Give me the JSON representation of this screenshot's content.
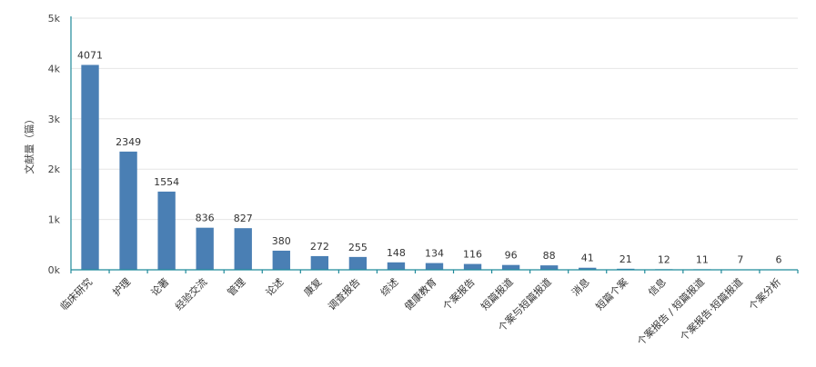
{
  "chart_data": {
    "type": "bar",
    "title": "",
    "ylabel": "文献量（篇）",
    "xlabel": "",
    "categories": [
      "临床研究",
      "护理",
      "论著",
      "经验交流",
      "管理",
      "论述",
      "康复",
      "调查报告",
      "综述",
      "健康教育",
      "个案报告",
      "短篇报道",
      "个案与短篇报道",
      "消息",
      "短篇个案",
      "信息",
      "个案报告 / 短篇报道",
      "个案报告·短篇报道",
      "个案分析"
    ],
    "values": [
      4071,
      2349,
      1554,
      836,
      827,
      380,
      272,
      255,
      148,
      134,
      116,
      96,
      88,
      41,
      21,
      12,
      11,
      7,
      6
    ],
    "ylim": [
      0,
      5000
    ],
    "yticks": [
      0,
      1000,
      2000,
      3000,
      4000,
      5000
    ],
    "ytick_labels": [
      "0k",
      "1k",
      "2k",
      "3k",
      "4k",
      "5k"
    ],
    "grid": true,
    "legend": "none",
    "bar_color": "#4a7fb4",
    "axis_color": "#1f8a9a"
  }
}
